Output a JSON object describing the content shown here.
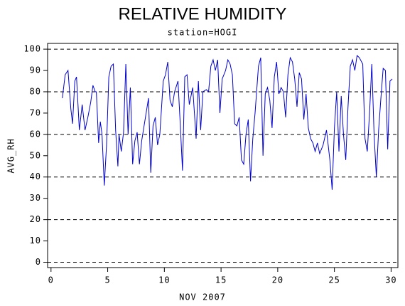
{
  "chart_data": {
    "type": "line",
    "title": "RELATIVE HUMIDITY",
    "subtitle": "station=HOGI",
    "x_label": "NOV 2007",
    "y_label": "AVG_RH",
    "xlim": [
      -0.3,
      30.6
    ],
    "ylim": [
      -2.5,
      102.7
    ],
    "xticks": [
      0,
      5,
      10,
      15,
      20,
      25,
      30
    ],
    "yticks": [
      0,
      10,
      20,
      30,
      40,
      50,
      60,
      70,
      80,
      90,
      100
    ],
    "grid_lines": [
      0,
      20,
      40,
      60,
      80,
      100
    ],
    "x": [
      1.0,
      1.25,
      1.5,
      1.75,
      1.9,
      2.1,
      2.25,
      2.5,
      2.75,
      3.0,
      3.25,
      3.5,
      3.7,
      3.9,
      4.0,
      4.2,
      4.35,
      4.5,
      4.7,
      4.9,
      5.1,
      5.3,
      5.5,
      5.7,
      5.9,
      6.0,
      6.2,
      6.4,
      6.6,
      6.8,
      7.0,
      7.2,
      7.4,
      7.6,
      7.8,
      8.0,
      8.3,
      8.6,
      8.8,
      9.0,
      9.2,
      9.4,
      9.6,
      9.9,
      10.1,
      10.3,
      10.5,
      10.7,
      10.9,
      11.2,
      11.4,
      11.6,
      11.8,
      12.0,
      12.2,
      12.5,
      12.8,
      13.0,
      13.2,
      13.4,
      13.7,
      13.9,
      14.1,
      14.3,
      14.5,
      14.7,
      14.9,
      15.1,
      15.4,
      15.6,
      15.8,
      16.0,
      16.2,
      16.4,
      16.6,
      16.8,
      17.0,
      17.2,
      17.4,
      17.6,
      17.8,
      18.0,
      18.3,
      18.5,
      18.7,
      18.9,
      19.1,
      19.3,
      19.5,
      19.7,
      19.9,
      20.1,
      20.3,
      20.5,
      20.7,
      20.9,
      21.1,
      21.3,
      21.5,
      21.7,
      21.9,
      22.1,
      22.3,
      22.5,
      22.7,
      22.9,
      23.1,
      23.3,
      23.5,
      23.7,
      24.0,
      24.3,
      24.6,
      24.8,
      25.0,
      25.2,
      25.4,
      25.6,
      25.8,
      26.0,
      26.2,
      26.4,
      26.6,
      26.8,
      27.0,
      27.2,
      27.5,
      27.7,
      27.9,
      28.1,
      28.3,
      28.5,
      28.7,
      28.9,
      29.1,
      29.3,
      29.5,
      29.7,
      29.9,
      30.1
    ],
    "series": [
      {
        "color": "#0000cc",
        "values": [
          77,
          88,
          90,
          72,
          65,
          85,
          87,
          62,
          74,
          62,
          68,
          75,
          83,
          80,
          80,
          56,
          66,
          60,
          36,
          55,
          87,
          92,
          93,
          62,
          45,
          60,
          52,
          61,
          93,
          60,
          82,
          46,
          57,
          61,
          46,
          57,
          67,
          77,
          42,
          64,
          68,
          55,
          60,
          85,
          88,
          94,
          76,
          73,
          80,
          85,
          65,
          43,
          87,
          88,
          74,
          82,
          58,
          85,
          62,
          80,
          81,
          80,
          92,
          95,
          90,
          95,
          70,
          86,
          90,
          95,
          93,
          88,
          65,
          64,
          68,
          48,
          46,
          60,
          67,
          38,
          58,
          70,
          92,
          96,
          50,
          79,
          82,
          76,
          63,
          87,
          94,
          79,
          82,
          80,
          68,
          88,
          96,
          94,
          86,
          73,
          89,
          86,
          67,
          79,
          63,
          58,
          56,
          52,
          56,
          51,
          55,
          62,
          48,
          34,
          63,
          80,
          52,
          78,
          60,
          48,
          73,
          92,
          95,
          90,
          97,
          96,
          93,
          58,
          52,
          70,
          93,
          60,
          40,
          62,
          77,
          91,
          90,
          53,
          85,
          86
        ]
      }
    ]
  }
}
